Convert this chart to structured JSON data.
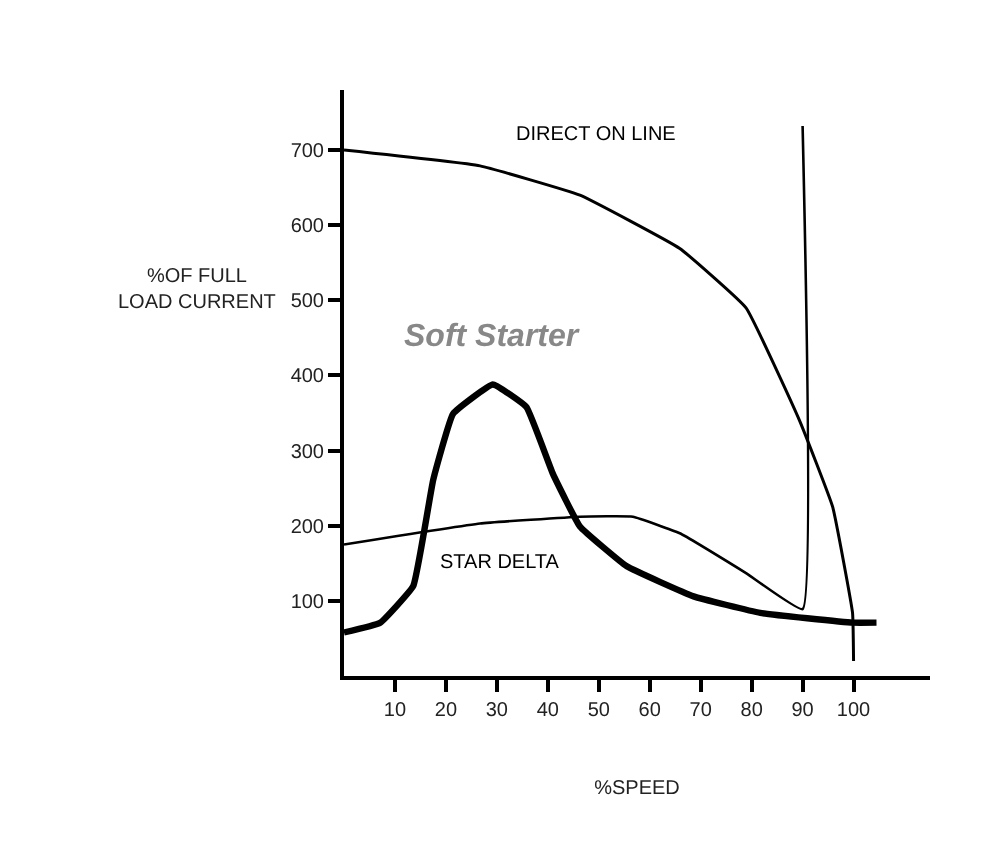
{
  "chart_data": {
    "type": "line",
    "xlabel": "%SPEED",
    "ylabel": "%OF FULL\nLOAD CURRENT",
    "xlim": [
      0,
      115
    ],
    "xticks": [
      10,
      20,
      30,
      40,
      50,
      60,
      70,
      80,
      90,
      100
    ],
    "ylim": [
      0,
      780
    ],
    "yticks": [
      100,
      200,
      300,
      400,
      500,
      600,
      700
    ],
    "legend": false,
    "marker": "none",
    "line_style": "solid",
    "series": [
      {
        "name": "DIRECT ON LINE",
        "color": "#000000",
        "x": [
          0,
          26.7,
          46.3,
          65.9,
          78.9,
          89.4,
          95.9,
          99.8,
          100
        ],
        "values": [
          700,
          679,
          640,
          569,
          490,
          340,
          225,
          84,
          20
        ]
      },
      {
        "name": "STAR DELTA",
        "color": "#000000",
        "x": [
          0,
          26.7,
          46.3,
          56.7,
          65.9,
          78.9,
          90,
          90
        ],
        "values": [
          175,
          203,
          212,
          212,
          190,
          137,
          89,
          732
        ]
      },
      {
        "name": "Soft Starter",
        "color": "#000000",
        "x": [
          0,
          7.1,
          13.6,
          17.5,
          21.4,
          29.2,
          35.8,
          41,
          46.3,
          55.5,
          68.6,
          81.7,
          99.8,
          104.5
        ],
        "values": [
          58,
          71,
          120,
          261,
          349,
          388,
          358,
          269,
          199,
          146,
          106,
          84,
          71,
          71
        ]
      }
    ]
  }
}
